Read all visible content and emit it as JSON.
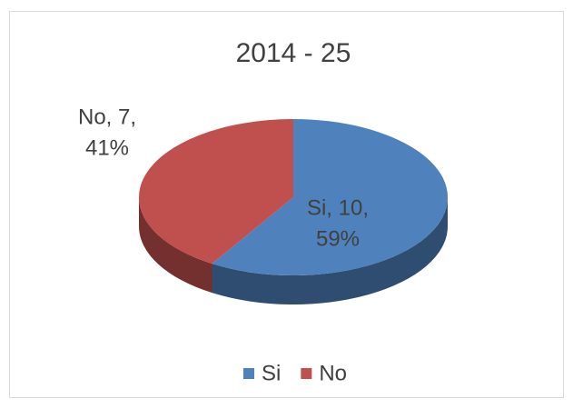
{
  "chart_data": {
    "type": "pie",
    "title": "2014 - 25",
    "categories": [
      "Si",
      "No"
    ],
    "values": [
      10,
      7
    ],
    "value_labels": [
      [
        "Si, 10,",
        "59%"
      ],
      [
        "No, 7,",
        "41%"
      ]
    ],
    "colors": [
      "#4f81bd",
      "#c0504d"
    ],
    "legend": "bottom"
  }
}
